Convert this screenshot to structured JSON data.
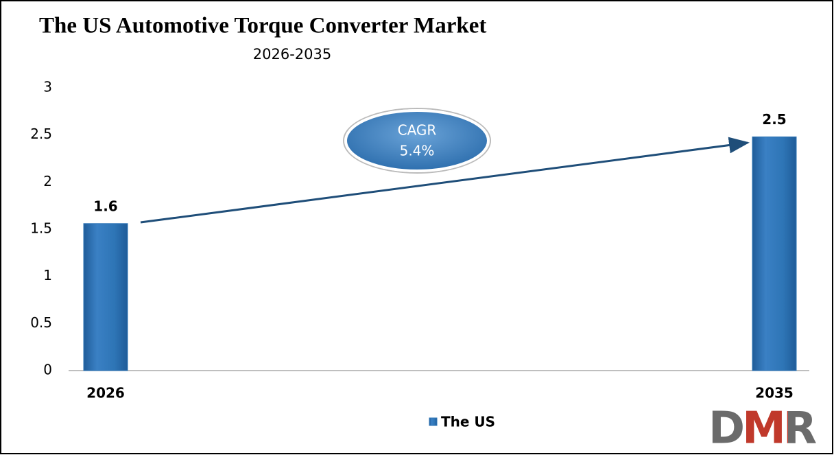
{
  "chart_data": {
    "type": "bar",
    "title": "The US Automotive Torque Converter Market",
    "subtitle": "2026-2035",
    "categories": [
      "2026",
      "2035"
    ],
    "series": [
      {
        "name": "The US",
        "color": "#2e75b6",
        "values": [
          1.56,
          2.48
        ],
        "value_labels": [
          "1.6",
          "2.5"
        ]
      }
    ],
    "ylim": [
      0,
      3
    ],
    "yticks": [
      0,
      0.5,
      1,
      1.5,
      2,
      2.5,
      3
    ],
    "grid": false,
    "annotation": {
      "label": "CAGR",
      "value": "5.4%"
    },
    "logo": "DMR"
  }
}
